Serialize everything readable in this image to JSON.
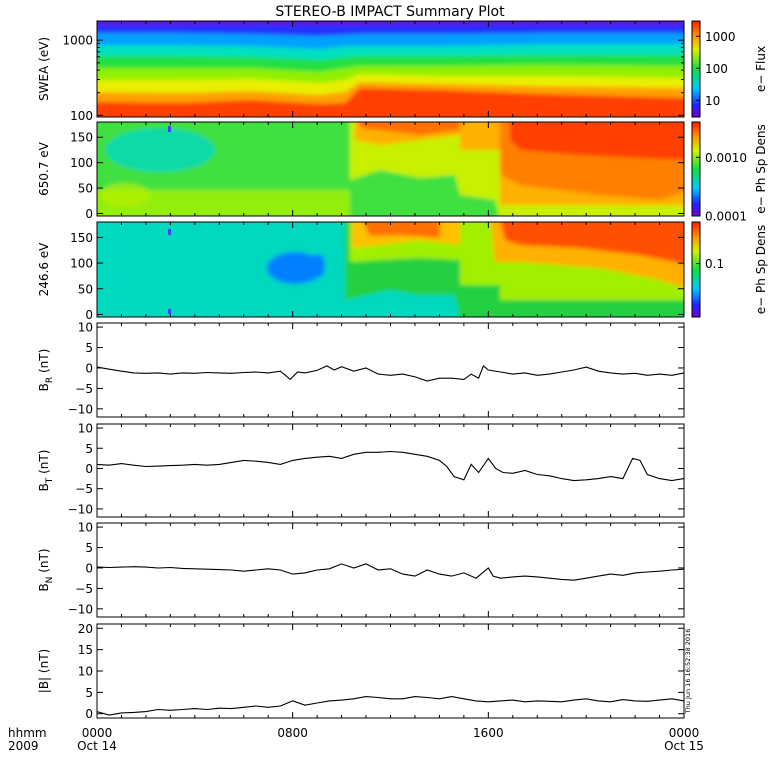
{
  "title": "STEREO-B IMPACT Summary Plot",
  "time_axis": {
    "row_label_top": "hhmm",
    "row_label_bottom": "2009",
    "ticks": [
      {
        "hour": 0,
        "top": "0000",
        "bottom": "Oct 14"
      },
      {
        "hour": 8,
        "top": "0800",
        "bottom": ""
      },
      {
        "hour": 16,
        "top": "1600",
        "bottom": ""
      },
      {
        "hour": 24,
        "top": "0000",
        "bottom": "Oct 15"
      }
    ],
    "range_hours": [
      0,
      24
    ],
    "minor_tick_hours": 1
  },
  "stamp": "Thu Jun 16 16:52:38 2016",
  "panels": [
    {
      "type": "heatmap",
      "ylabel": "SWEA (eV)",
      "yscale": "log",
      "ylim": [
        95,
        1800
      ],
      "yticks": [
        100,
        1000
      ],
      "ytick_labels": [
        "100",
        "1000"
      ],
      "colorbar": {
        "label": "e− Flux",
        "scale": "log",
        "range": [
          3,
          3000
        ],
        "ticks": [
          10,
          100,
          1000
        ],
        "tick_labels": [
          "10",
          "100",
          "1000"
        ]
      },
      "description_of_field": "high flux at low energy, rising after ~0930"
    },
    {
      "type": "heatmap",
      "ylabel": "650.7 eV",
      "yscale": "linear",
      "ylim": [
        -5,
        180
      ],
      "yticks": [
        0,
        50,
        100,
        150
      ],
      "ytick_labels": [
        "0",
        "50",
        "100",
        "150"
      ],
      "colorbar": {
        "label": "e− Ph Sp Dens",
        "scale": "log",
        "range": [
          0.0001,
          0.004
        ],
        "ticks": [
          0.0001,
          0.001
        ],
        "tick_labels": [
          "0.0001",
          "0.0010"
        ]
      }
    },
    {
      "type": "heatmap",
      "ylabel": "246.6 eV",
      "yscale": "linear",
      "ylim": [
        -5,
        180
      ],
      "yticks": [
        0,
        50,
        100,
        150
      ],
      "ytick_labels": [
        "0",
        "50",
        "100",
        "150"
      ],
      "colorbar": {
        "label": "e− Ph Sp Dens",
        "scale": "log",
        "range": [
          0.01,
          0.6
        ],
        "ticks": [
          0.1
        ],
        "tick_labels": [
          "0.1"
        ]
      }
    },
    {
      "type": "line",
      "ylabel_main": "B",
      "ylabel_sub": "R",
      "ylabel_unit": " (nT)",
      "ylim": [
        -12,
        11
      ],
      "yticks": [
        -10,
        -5,
        0,
        5,
        10
      ],
      "ytick_labels": [
        "−10",
        "−5",
        "0",
        "5",
        "10"
      ],
      "series": {
        "x": [
          0,
          0.5,
          1,
          1.5,
          2,
          2.5,
          3,
          3.5,
          4,
          4.5,
          5,
          5.5,
          6,
          6.5,
          7,
          7.5,
          7.9,
          8.2,
          8.5,
          9,
          9.4,
          9.7,
          10,
          10.5,
          11,
          11.5,
          12,
          12.5,
          13,
          13.5,
          14,
          14.5,
          15,
          15.3,
          15.6,
          15.8,
          16,
          16.5,
          17,
          17.5,
          18,
          18.5,
          19,
          19.5,
          20,
          20.5,
          21,
          21.5,
          22,
          22.5,
          23,
          23.5,
          24
        ],
        "y": [
          0.2,
          -0.3,
          -0.8,
          -1.2,
          -1.3,
          -1.2,
          -1.5,
          -1.2,
          -1.3,
          -1.1,
          -1.2,
          -1.3,
          -1.1,
          -1.0,
          -1.2,
          -0.8,
          -2.8,
          -1.0,
          -1.2,
          -0.6,
          0.5,
          -0.5,
          0.3,
          -0.8,
          0.0,
          -1.5,
          -1.8,
          -1.5,
          -2.2,
          -3.2,
          -2.5,
          -2.5,
          -2.8,
          -1.5,
          -2.5,
          0.5,
          -0.5,
          -1.0,
          -1.5,
          -1.2,
          -1.8,
          -1.5,
          -1.0,
          -0.5,
          0.2,
          -0.8,
          -1.2,
          -1.5,
          -1.3,
          -1.8,
          -1.5,
          -1.8,
          -1.2
        ]
      }
    },
    {
      "type": "line",
      "ylabel_main": "B",
      "ylabel_sub": "T",
      "ylabel_unit": " (nT)",
      "ylim": [
        -12,
        11
      ],
      "yticks": [
        -10,
        -5,
        0,
        5,
        10
      ],
      "ytick_labels": [
        "−10",
        "−5",
        "0",
        "5",
        "10"
      ],
      "series": {
        "x": [
          0,
          0.5,
          1,
          1.5,
          2,
          2.5,
          3,
          3.5,
          4,
          4.5,
          5,
          5.5,
          6,
          6.5,
          7,
          7.5,
          8,
          8.5,
          9,
          9.5,
          10,
          10.5,
          11,
          11.5,
          12,
          12.5,
          13,
          13.5,
          14,
          14.3,
          14.6,
          15,
          15.3,
          15.6,
          16,
          16.3,
          16.6,
          17,
          17.5,
          18,
          18.5,
          19,
          19.5,
          20,
          20.5,
          21,
          21.5,
          21.9,
          22.2,
          22.5,
          23,
          23.5,
          24
        ],
        "y": [
          1.0,
          0.8,
          1.2,
          0.8,
          0.5,
          0.6,
          0.7,
          0.8,
          1.0,
          0.8,
          1.0,
          1.5,
          2.0,
          1.8,
          1.5,
          1.0,
          2.0,
          2.5,
          2.8,
          3.0,
          2.5,
          3.5,
          4.0,
          4.0,
          4.2,
          4.0,
          3.5,
          3.0,
          2.0,
          0.5,
          -2.0,
          -2.8,
          1.0,
          -1.0,
          2.5,
          0.0,
          -1.0,
          -1.2,
          -0.5,
          -1.5,
          -1.8,
          -2.5,
          -3.0,
          -2.8,
          -2.5,
          -2.0,
          -2.5,
          2.5,
          2.0,
          -1.5,
          -2.5,
          -3.0,
          -2.5
        ]
      }
    },
    {
      "type": "line",
      "ylabel_main": "B",
      "ylabel_sub": "N",
      "ylabel_unit": " (nT)",
      "ylim": [
        -12,
        11
      ],
      "yticks": [
        -10,
        -5,
        0,
        5,
        10
      ],
      "ytick_labels": [
        "−10",
        "−5",
        "0",
        "5",
        "10"
      ],
      "series": {
        "x": [
          0,
          0.5,
          1,
          1.5,
          2,
          2.5,
          3,
          3.5,
          4,
          4.5,
          5,
          5.5,
          6,
          6.5,
          7,
          7.5,
          8,
          8.5,
          9,
          9.5,
          10,
          10.5,
          11,
          11.5,
          12,
          12.5,
          13,
          13.5,
          14,
          14.5,
          15,
          15.5,
          16,
          16.2,
          16.5,
          17,
          17.5,
          18,
          18.5,
          19,
          19.5,
          20,
          20.5,
          21,
          21.5,
          22,
          22.5,
          23,
          23.5,
          24
        ],
        "y": [
          0.2,
          0.1,
          0.2,
          0.3,
          0.2,
          0.0,
          0.1,
          -0.1,
          -0.2,
          -0.3,
          -0.4,
          -0.5,
          -0.8,
          -0.5,
          -0.2,
          -0.5,
          -1.5,
          -1.2,
          -0.5,
          -0.2,
          1.0,
          0.0,
          1.0,
          -0.5,
          -0.2,
          -1.5,
          -2.0,
          -0.5,
          -1.5,
          -2.0,
          -1.2,
          -2.5,
          0.0,
          -2.0,
          -2.5,
          -2.2,
          -2.0,
          -2.2,
          -2.5,
          -2.8,
          -3.0,
          -2.5,
          -2.0,
          -1.5,
          -1.8,
          -1.2,
          -1.0,
          -0.8,
          -0.5,
          -0.3
        ]
      }
    },
    {
      "type": "line",
      "ylabel_main": "|B|",
      "ylabel_sub": "",
      "ylabel_unit": " (nT)",
      "ylim": [
        -1,
        21
      ],
      "yticks": [
        0,
        5,
        10,
        15,
        20
      ],
      "ytick_labels": [
        "0",
        "5",
        "10",
        "15",
        "20"
      ],
      "series": {
        "x": [
          0,
          0.5,
          1,
          1.5,
          2,
          2.5,
          3,
          3.5,
          4,
          4.5,
          5,
          5.5,
          6,
          6.5,
          7,
          7.5,
          8,
          8.5,
          9,
          9.5,
          10,
          10.5,
          11,
          11.5,
          12,
          12.5,
          13,
          13.5,
          14,
          14.5,
          15,
          15.5,
          16,
          16.5,
          17,
          17.5,
          18,
          18.5,
          19,
          19.5,
          20,
          20.5,
          21,
          21.5,
          22,
          22.5,
          23,
          23.5,
          24
        ],
        "y": [
          0.5,
          -0.3,
          0.2,
          0.3,
          0.5,
          1.0,
          0.8,
          1.0,
          1.2,
          1.0,
          1.3,
          1.2,
          1.5,
          1.8,
          1.5,
          1.8,
          3.0,
          2.0,
          2.5,
          3.0,
          3.2,
          3.5,
          4.0,
          3.8,
          3.5,
          3.5,
          4.0,
          3.8,
          3.5,
          4.0,
          3.5,
          3.0,
          2.8,
          3.0,
          3.2,
          2.8,
          3.0,
          2.9,
          2.8,
          3.2,
          3.5,
          3.0,
          2.8,
          3.3,
          3.0,
          2.9,
          3.2,
          3.5,
          3.0
        ]
      }
    }
  ]
}
